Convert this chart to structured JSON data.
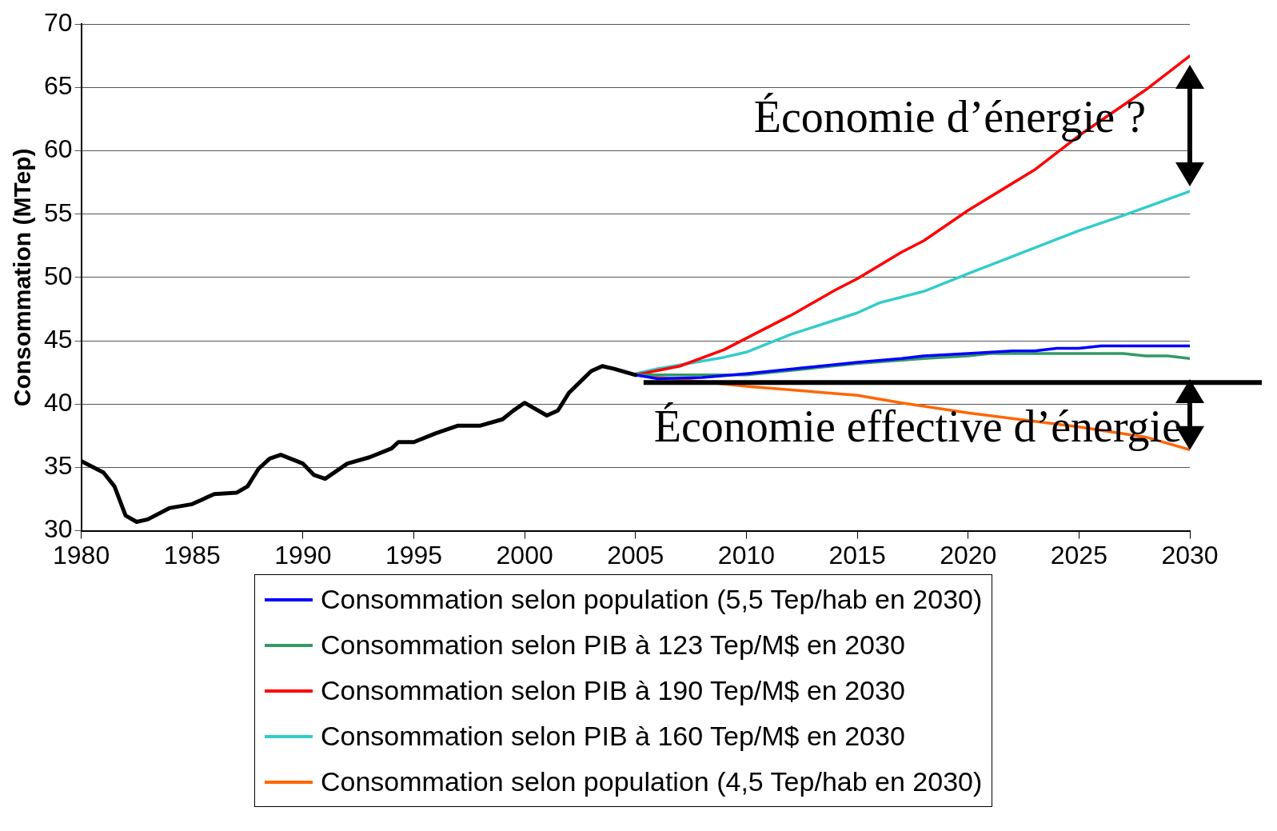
{
  "chart_data": {
    "type": "line",
    "ylabel": "Consommation (MTep)",
    "xlim": [
      1980,
      2030
    ],
    "xticks": [
      1980,
      1985,
      1990,
      1995,
      2000,
      2005,
      2010,
      2015,
      2020,
      2025,
      2030
    ],
    "ylim": [
      30,
      70
    ],
    "yticks": [
      30,
      35,
      40,
      45,
      50,
      55,
      60,
      65,
      70
    ],
    "grid": "y",
    "legend": "bottom",
    "marker": "none",
    "line_style": "solid",
    "series": [
      {
        "color": "#000000",
        "x": [
          1980,
          1981,
          1981.5,
          1982,
          1982.5,
          1983,
          1984,
          1985,
          1986,
          1987,
          1987.5,
          1988,
          1988.5,
          1989,
          1990,
          1990.5,
          1991,
          1992,
          1993,
          1994,
          1994.3,
          1995,
          1996,
          1997,
          1998,
          1999,
          1999.5,
          2000,
          2001,
          2001.5,
          2002,
          2003,
          2003.5,
          2004,
          2005
        ],
        "values": [
          35.5,
          34.6,
          33.5,
          31.2,
          30.7,
          30.9,
          31.8,
          32.1,
          32.9,
          33.0,
          33.5,
          34.9,
          35.7,
          36.0,
          35.3,
          34.4,
          34.1,
          35.3,
          35.8,
          36.5,
          37.0,
          37.0,
          37.7,
          38.3,
          38.3,
          38.8,
          39.5,
          40.1,
          39.1,
          39.5,
          40.9,
          42.6,
          43.0,
          42.8,
          42.3
        ]
      },
      {
        "name": "Consommation selon population (5,5 Tep/hab en 2030)",
        "color": "#0000ff",
        "x": [
          2005,
          2006,
          2008,
          2010,
          2015,
          2017,
          2018,
          2020,
          2022,
          2023,
          2024,
          2025,
          2026,
          2030
        ],
        "values": [
          42.3,
          42.0,
          42.1,
          42.4,
          43.3,
          43.6,
          43.8,
          44.0,
          44.2,
          44.2,
          44.4,
          44.4,
          44.6,
          44.6
        ]
      },
      {
        "name": "Consommation selon PIB à 123 Tep/M$ en 2030",
        "color": "#339966",
        "x": [
          2005,
          2010,
          2015,
          2018,
          2020,
          2021,
          2027,
          2028,
          2029,
          2030
        ],
        "values": [
          42.3,
          42.3,
          43.2,
          43.6,
          43.8,
          44.0,
          44.0,
          43.8,
          43.8,
          43.6
        ]
      },
      {
        "name": "Consommation selon PIB à 190 Tep/M$ en 2030",
        "color": "#ff0000",
        "x": [
          2005,
          2007,
          2009,
          2012,
          2014,
          2015,
          2017,
          2018,
          2020,
          2023,
          2025,
          2027,
          2028,
          2030
        ],
        "values": [
          42.3,
          43.0,
          44.3,
          47.0,
          49.0,
          49.9,
          52.0,
          52.9,
          55.3,
          58.5,
          61.2,
          63.6,
          64.8,
          67.5
        ]
      },
      {
        "name": "Consommation selon PIB à 160 Tep/M$ en 2030",
        "color": "#33cccc",
        "x": [
          2005,
          2006,
          2007,
          2009,
          2010,
          2012,
          2015,
          2016,
          2018,
          2020,
          2025,
          2027,
          2030
        ],
        "values": [
          42.4,
          42.8,
          43.1,
          43.7,
          44.1,
          45.5,
          47.2,
          48.0,
          48.9,
          50.3,
          53.7,
          54.9,
          56.8
        ]
      },
      {
        "name": "Consommation selon population (4,5 Tep/hab en 2030)",
        "color": "#ff6600",
        "x": [
          2005,
          2010,
          2015,
          2017,
          2020,
          2025,
          2028,
          2030
        ],
        "values": [
          42.3,
          41.4,
          40.7,
          40.1,
          39.3,
          38.2,
          37.4,
          36.4
        ]
      }
    ],
    "ref_lines": [
      {
        "axis": "y",
        "value": 41.7,
        "color": "#000000"
      }
    ],
    "annotations": [
      "Économie d’énergie ?",
      "Économie effective d’énergie"
    ]
  }
}
